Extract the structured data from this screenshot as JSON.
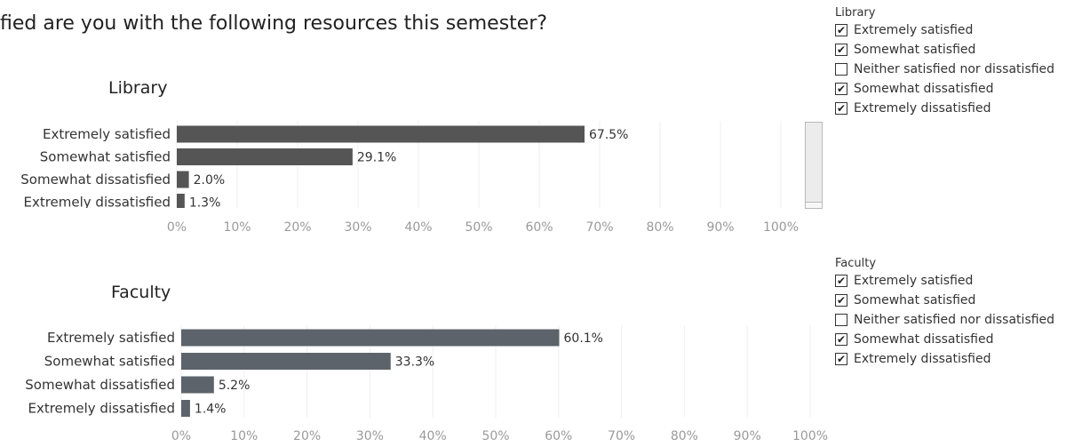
{
  "page": {
    "title": "fied are you with the following resources this semester?"
  },
  "legend_library": {
    "title": "Library",
    "items": [
      {
        "label": "Extremely satisfied",
        "checked": true
      },
      {
        "label": "Somewhat satisfied",
        "checked": true
      },
      {
        "label": "Neither satisfied nor dissatisfied",
        "checked": false
      },
      {
        "label": "Somewhat dissatisfied",
        "checked": true
      },
      {
        "label": "Extremely dissatisfied",
        "checked": true
      }
    ]
  },
  "legend_faculty": {
    "title": "Faculty",
    "items": [
      {
        "label": "Extremely satisfied",
        "checked": true
      },
      {
        "label": "Somewhat satisfied",
        "checked": true
      },
      {
        "label": "Neither satisfied nor dissatisfied",
        "checked": false
      },
      {
        "label": "Somewhat dissatisfied",
        "checked": true
      },
      {
        "label": "Extremely dissatisfied",
        "checked": true
      }
    ]
  },
  "check_glyph": "✔",
  "chart_data": [
    {
      "type": "bar",
      "orientation": "horizontal",
      "title": "Library",
      "categories": [
        "Extremely satisfied",
        "Somewhat satisfied",
        "Somewhat dissatisfied",
        "Extremely dissatisfied"
      ],
      "values": [
        67.5,
        29.1,
        2.0,
        1.3
      ],
      "value_labels": [
        "67.5%",
        "29.1%",
        "2.0%",
        "1.3%"
      ],
      "x_ticks": [
        "0%",
        "10%",
        "20%",
        "30%",
        "40%",
        "50%",
        "60%",
        "70%",
        "80%",
        "90%",
        "100%"
      ],
      "xlim": [
        0,
        100
      ],
      "grid": true,
      "color": "#555555"
    },
    {
      "type": "bar",
      "orientation": "horizontal",
      "title": "Faculty",
      "categories": [
        "Extremely satisfied",
        "Somewhat satisfied",
        "Somewhat dissatisfied",
        "Extremely dissatisfied"
      ],
      "values": [
        60.1,
        33.3,
        5.2,
        1.4
      ],
      "value_labels": [
        "60.1%",
        "33.3%",
        "5.2%",
        "1.4%"
      ],
      "x_ticks": [
        "0%",
        "10%",
        "20%",
        "30%",
        "40%",
        "50%",
        "60%",
        "70%",
        "80%",
        "90%",
        "100%"
      ],
      "xlim": [
        0,
        100
      ],
      "grid": true,
      "color": "#5d636b"
    }
  ]
}
